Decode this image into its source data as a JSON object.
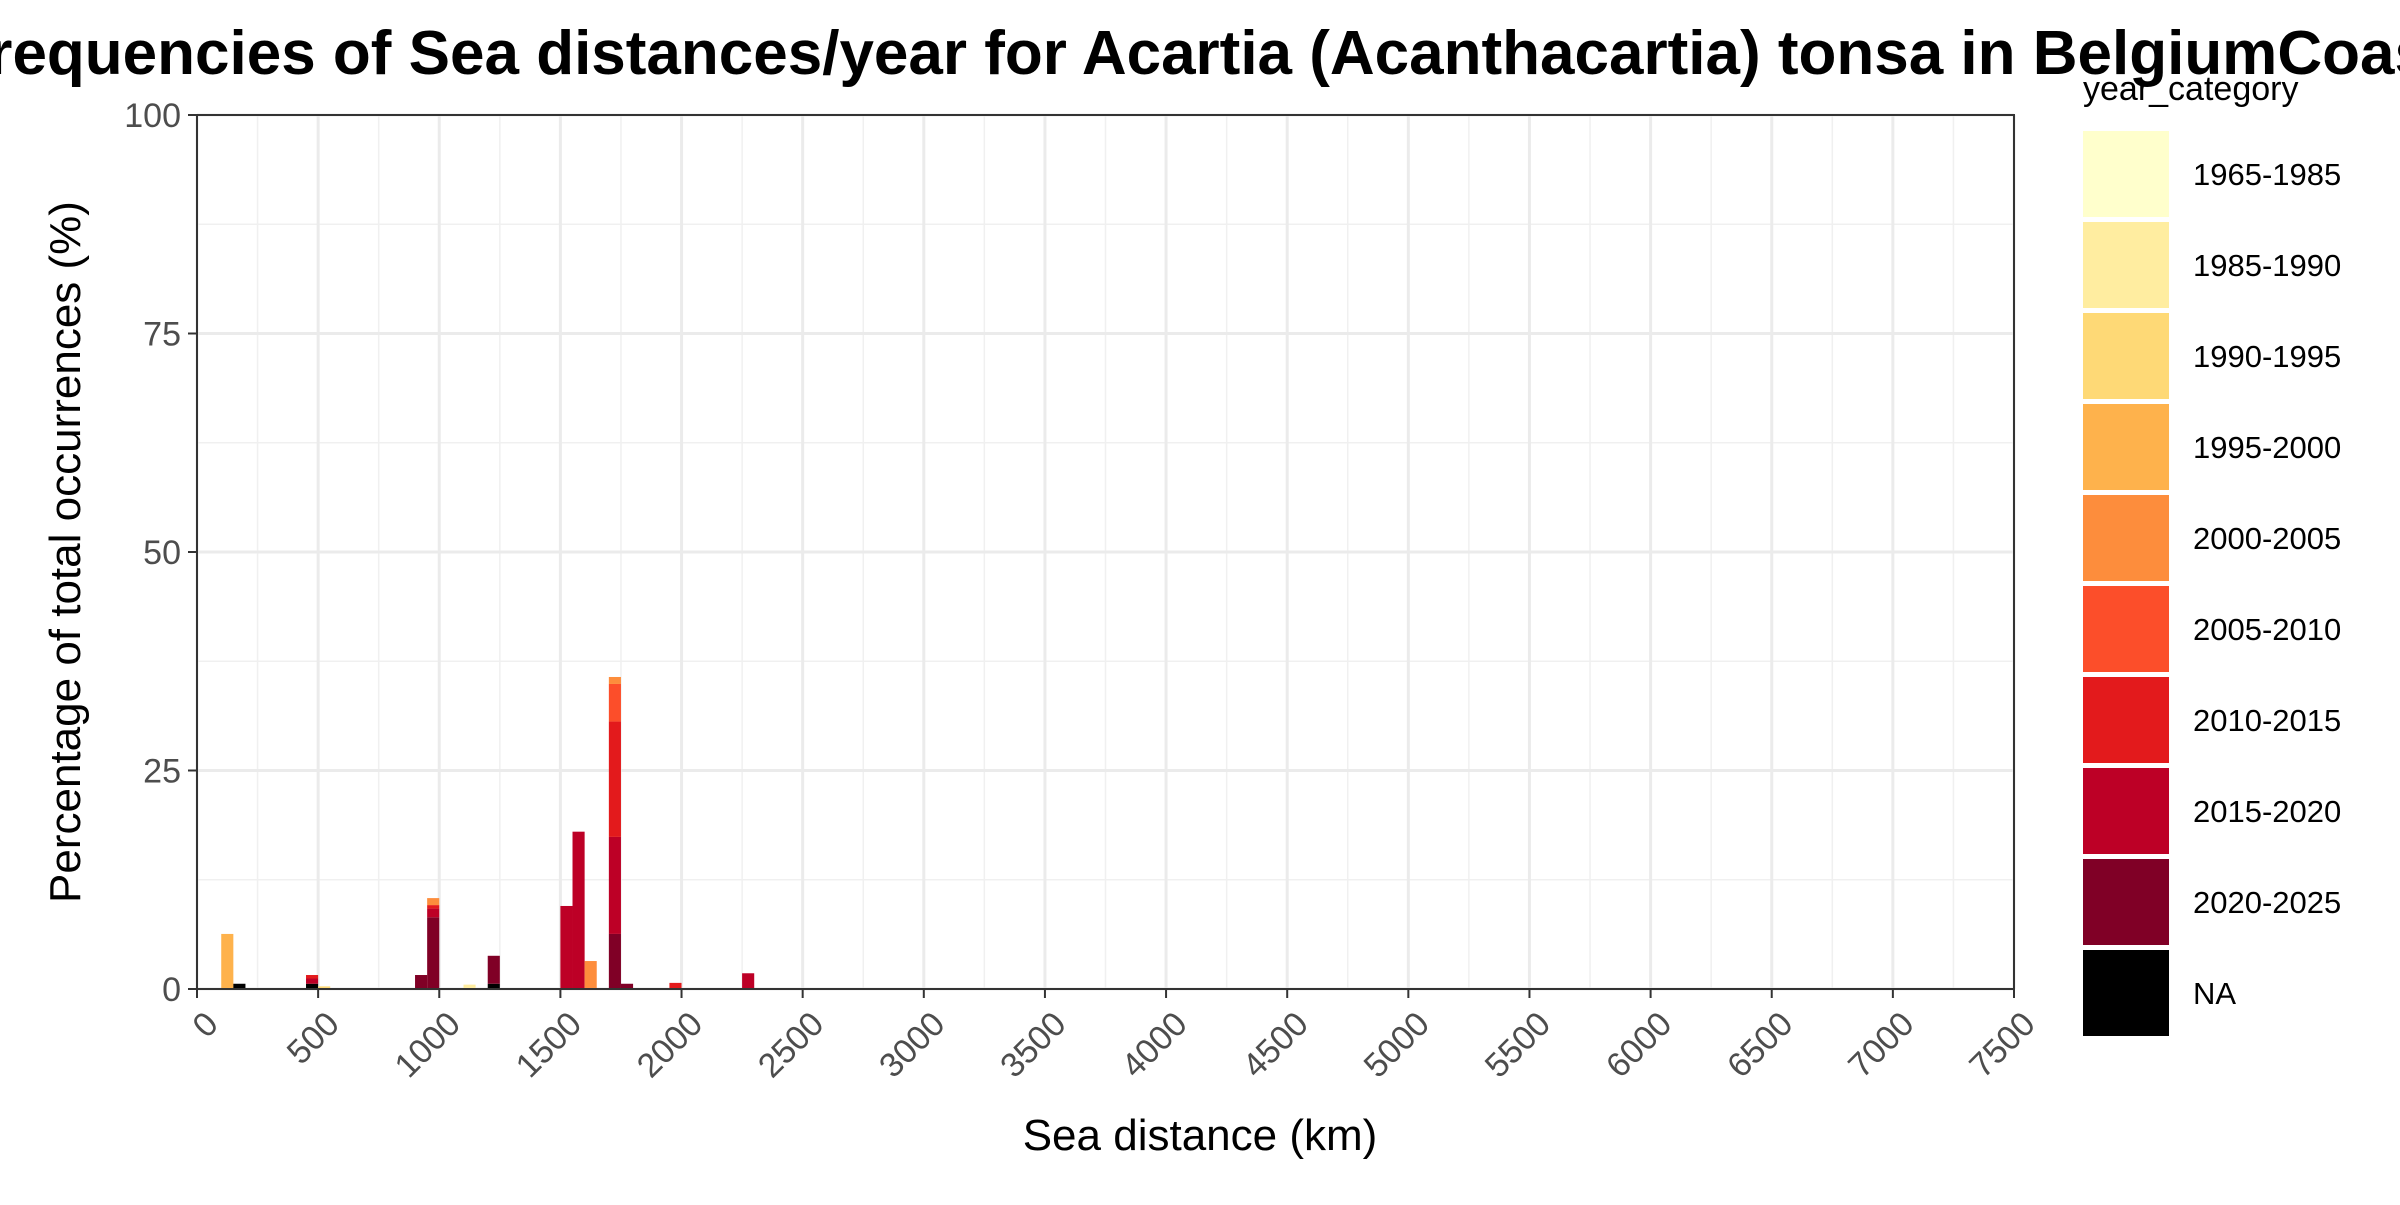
{
  "chart_data": {
    "type": "bar",
    "stacked": true,
    "title": "Frequencies of Sea distances/year for Acartia (Acanthacartia) tonsa in BelgiumCoast",
    "xlabel": "Sea distance (km)",
    "ylabel": "Percentage of total occurrences (%)",
    "xlim": [
      0,
      7500
    ],
    "ylim": [
      0,
      100
    ],
    "x_ticks": [
      "0",
      "500",
      "1000",
      "1500",
      "2000",
      "2500",
      "3000",
      "3500",
      "4000",
      "4500",
      "5000",
      "5500",
      "6000",
      "6500",
      "7000",
      "7500"
    ],
    "y_ticks": [
      "0",
      "25",
      "50",
      "75",
      "100"
    ],
    "grid": true,
    "bin_width": 50,
    "legend": {
      "title": "year_category",
      "position": "right",
      "entries": [
        {
          "name": "1965-1985",
          "color": "#ffffcc"
        },
        {
          "name": "1985-1990",
          "color": "#ffeda0"
        },
        {
          "name": "1990-1995",
          "color": "#fed976"
        },
        {
          "name": "1995-2000",
          "color": "#feb24c"
        },
        {
          "name": "2000-2005",
          "color": "#fd8d3c"
        },
        {
          "name": "2005-2010",
          "color": "#fc4e2a"
        },
        {
          "name": "2010-2015",
          "color": "#e31a1c"
        },
        {
          "name": "2015-2020",
          "color": "#bd0026"
        },
        {
          "name": "2020-2025",
          "color": "#800026"
        },
        {
          "name": "NA",
          "color": "#000000"
        }
      ]
    },
    "stack_order": [
      "NA",
      "2020-2025",
      "2015-2020",
      "2010-2015",
      "2005-2010",
      "2000-2005",
      "1995-2000",
      "1990-1995",
      "1985-1990",
      "1965-1985"
    ],
    "bins": [
      {
        "x": 125,
        "stack": {
          "1995-2000": 6.3
        }
      },
      {
        "x": 175,
        "stack": {
          "NA": 0.6
        }
      },
      {
        "x": 475,
        "stack": {
          "NA": 0.6,
          "2015-2020": 0.6,
          "2010-2015": 0.4
        }
      },
      {
        "x": 525,
        "stack": {
          "1990-1995": 0.3
        }
      },
      {
        "x": 925,
        "stack": {
          "2020-2025": 1.6
        }
      },
      {
        "x": 975,
        "stack": {
          "2020-2025": 8.2,
          "2015-2020": 1.0,
          "2010-2015": 0.4,
          "2000-2005": 0.8
        }
      },
      {
        "x": 1125,
        "stack": {
          "1985-1990": 0.5
        }
      },
      {
        "x": 1225,
        "stack": {
          "NA": 0.6,
          "2020-2025": 3.2
        }
      },
      {
        "x": 1525,
        "stack": {
          "2015-2020": 9.5
        }
      },
      {
        "x": 1575,
        "stack": {
          "2015-2020": 18.0
        }
      },
      {
        "x": 1625,
        "stack": {
          "2000-2005": 3.2
        }
      },
      {
        "x": 1725,
        "stack": {
          "2020-2025": 6.3,
          "2015-2020": 11.1,
          "2010-2015": 13.2,
          "2005-2010": 4.3,
          "2000-2005": 0.8
        }
      },
      {
        "x": 1775,
        "stack": {
          "2020-2025": 0.6
        }
      },
      {
        "x": 1975,
        "stack": {
          "2010-2015": 0.7
        }
      },
      {
        "x": 2275,
        "stack": {
          "2015-2020": 1.8
        }
      }
    ]
  }
}
